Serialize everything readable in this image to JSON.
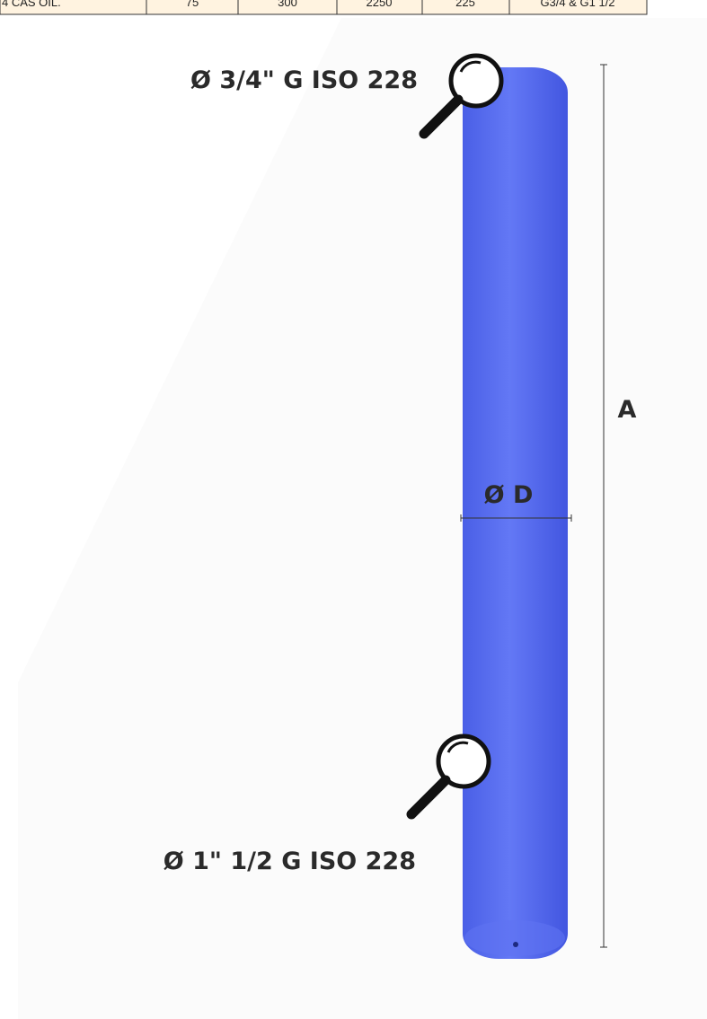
{
  "table": {
    "rows": [
      [
        "4 CAS OIL.",
        "75",
        "300",
        "2250",
        "225",
        "G3/4 & G1 1/2"
      ]
    ]
  },
  "labels": {
    "top_port": "Ø 3/4\" G ISO 228",
    "bottom_port": "Ø 1\" 1/2 G ISO 228",
    "dimension_a": "A",
    "dimension_d": "Ø D"
  }
}
